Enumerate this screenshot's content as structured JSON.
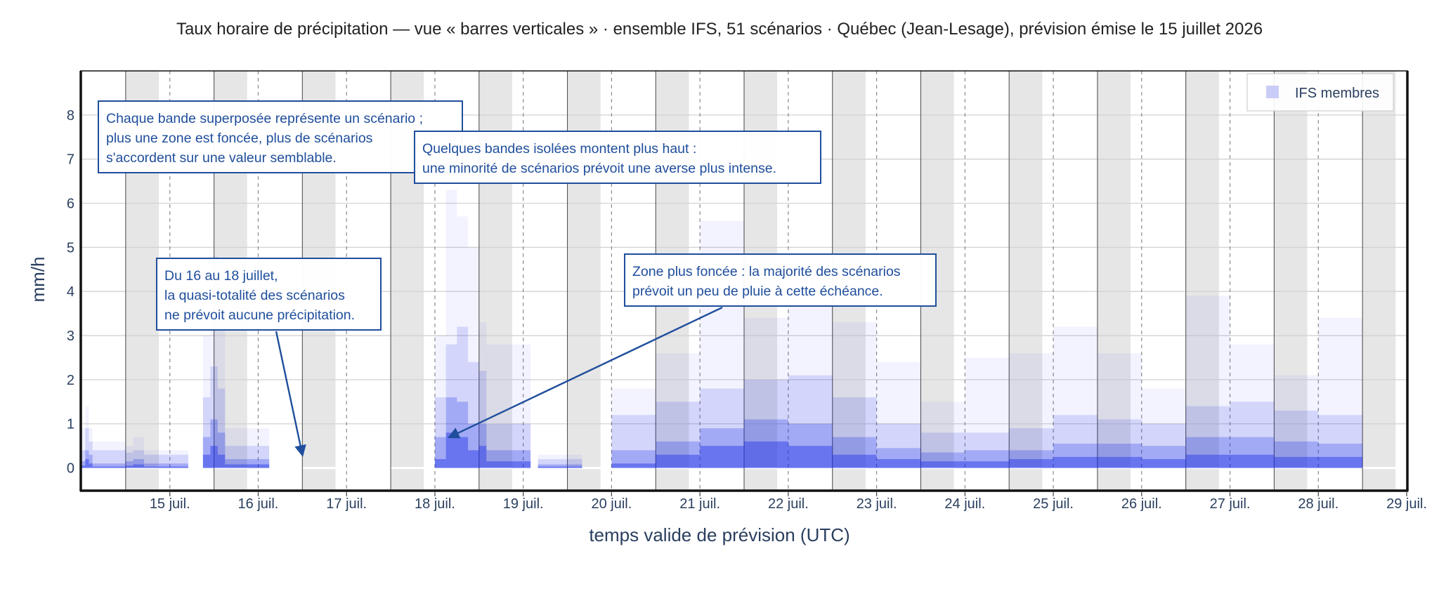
{
  "chart_data": {
    "type": "bar",
    "title": "Taux horaire de précipitation — vue « barres verticales » · ensemble IFS, 51 scénarios · Québec (Jean-Lesage), prévision émise le 15 juillet 2026",
    "xlabel": "temps valide de prévision (UTC)",
    "ylabel": "mm/h",
    "ylim": [
      -0.5,
      9
    ],
    "y_ticks": [
      "0",
      "1",
      "2",
      "3",
      "4",
      "5",
      "6",
      "7",
      "8"
    ],
    "x_ticks": [
      "15 juil.",
      "16 juil.",
      "17 juil.",
      "18 juil.",
      "19 juil.",
      "20 juil.",
      "21 juil.",
      "22 juil.",
      "23 juil.",
      "24 juil.",
      "25 juil.",
      "26 juil.",
      "27 juil.",
      "28 juil.",
      "29 juil."
    ],
    "x_start": "2026-07-14 12:00 UTC",
    "x_end": "2026-07-29 12:00 UTC",
    "grid": true,
    "legend_position": "top-right",
    "series": [
      {
        "name": "IFS membres",
        "color": "#1a2ee6"
      }
    ],
    "night_bands_utc": "00:00–09:00",
    "envelope": [
      {
        "t": "07-14 12:00",
        "p95": 0.4,
        "p75": 0.15,
        "p50": 0.05,
        "max": 0.9
      },
      {
        "t": "07-14 13:00",
        "p95": 0.9,
        "p75": 0.4,
        "p50": 0.2,
        "max": 1.4
      },
      {
        "t": "07-14 14:00",
        "p95": 0.6,
        "p75": 0.3,
        "p50": 0.1,
        "max": 0.9
      },
      {
        "t": "07-14 15:00",
        "p95": 0.4,
        "p75": 0.1,
        "p50": 0.03,
        "max": 0.6
      },
      {
        "t": "07-15 00:00",
        "p95": 0.35,
        "p75": 0.15,
        "p50": 0.05,
        "max": 0.5
      },
      {
        "t": "07-15 02:00",
        "p95": 0.4,
        "p75": 0.2,
        "p50": 0.08,
        "max": 0.7
      },
      {
        "t": "07-15 05:00",
        "p95": 0.3,
        "p75": 0.1,
        "p50": 0.03,
        "max": 0.4
      },
      {
        "t": "07-15 21:00",
        "p95": 1.6,
        "p75": 0.7,
        "p50": 0.3,
        "max": 3.0
      },
      {
        "t": "07-15 23:00",
        "p95": 2.3,
        "p75": 1.1,
        "p50": 0.5,
        "max": 4.8
      },
      {
        "t": "07-16 01:00",
        "p95": 1.8,
        "p75": 0.8,
        "p50": 0.3,
        "max": 3.6
      },
      {
        "t": "07-16 03:00",
        "p95": 0.5,
        "p75": 0.2,
        "p50": 0.08,
        "max": 0.9
      },
      {
        "t": "07-18 12:00",
        "p95": 1.6,
        "p75": 0.7,
        "p50": 0.2,
        "max": 3.0
      },
      {
        "t": "07-18 15:00",
        "p95": 2.8,
        "p75": 1.6,
        "p50": 0.8,
        "max": 6.3
      },
      {
        "t": "07-18 18:00",
        "p95": 3.2,
        "p75": 1.5,
        "p50": 0.7,
        "max": 5.7
      },
      {
        "t": "07-18 21:00",
        "p95": 2.4,
        "p75": 1.0,
        "p50": 0.4,
        "max": 5.0
      },
      {
        "t": "07-19 00:00",
        "p95": 2.2,
        "p75": 1.0,
        "p50": 0.5,
        "max": 3.3
      },
      {
        "t": "07-19 02:00",
        "p95": 1.0,
        "p75": 0.4,
        "p50": 0.15,
        "max": 2.8
      },
      {
        "t": "07-19 16:00",
        "p95": 0.2,
        "p75": 0.08,
        "p50": 0.03,
        "max": 0.3
      },
      {
        "t": "07-20 12:00",
        "p95": 1.2,
        "p75": 0.4,
        "p50": 0.1,
        "max": 1.8
      },
      {
        "t": "07-21 00:00",
        "p95": 1.5,
        "p75": 0.6,
        "p50": 0.3,
        "max": 2.6
      },
      {
        "t": "07-21 12:00",
        "p95": 1.8,
        "p75": 0.9,
        "p50": 0.5,
        "max": 5.6
      },
      {
        "t": "07-22 00:00",
        "p95": 2.0,
        "p75": 1.1,
        "p50": 0.6,
        "max": 3.4
      },
      {
        "t": "07-22 12:00",
        "p95": 2.1,
        "p75": 1.0,
        "p50": 0.5,
        "max": 4.0
      },
      {
        "t": "07-23 00:00",
        "p95": 1.6,
        "p75": 0.7,
        "p50": 0.3,
        "max": 3.3
      },
      {
        "t": "07-23 12:00",
        "p95": 1.0,
        "p75": 0.45,
        "p50": 0.2,
        "max": 2.4
      },
      {
        "t": "07-24 00:00",
        "p95": 0.8,
        "p75": 0.35,
        "p50": 0.15,
        "max": 1.5
      },
      {
        "t": "07-24 12:00",
        "p95": 0.8,
        "p75": 0.4,
        "p50": 0.15,
        "max": 2.5
      },
      {
        "t": "07-25 00:00",
        "p95": 0.9,
        "p75": 0.4,
        "p50": 0.2,
        "max": 2.6
      },
      {
        "t": "07-25 12:00",
        "p95": 1.2,
        "p75": 0.55,
        "p50": 0.25,
        "max": 3.2
      },
      {
        "t": "07-26 00:00",
        "p95": 1.1,
        "p75": 0.55,
        "p50": 0.25,
        "max": 2.6
      },
      {
        "t": "07-26 12:00",
        "p95": 1.0,
        "p75": 0.5,
        "p50": 0.2,
        "max": 1.8
      },
      {
        "t": "07-27 00:00",
        "p95": 1.4,
        "p75": 0.7,
        "p50": 0.3,
        "max": 3.9
      },
      {
        "t": "07-27 12:00",
        "p95": 1.5,
        "p75": 0.7,
        "p50": 0.3,
        "max": 2.8
      },
      {
        "t": "07-28 00:00",
        "p95": 1.3,
        "p75": 0.6,
        "p50": 0.25,
        "max": 2.1
      },
      {
        "t": "07-28 12:00",
        "p95": 1.2,
        "p75": 0.55,
        "p50": 0.25,
        "max": 3.4
      }
    ],
    "annotations": [
      {
        "lines": [
          "Chaque bande superposée représente un scénario ;",
          "plus une zone est foncée, plus de scénarios",
          "s'accordent sur une valeur semblable."
        ]
      },
      {
        "lines": [
          "Quelques bandes isolées montent plus haut :",
          "une minorité de scénarios prévoit une averse plus intense."
        ]
      },
      {
        "lines": [
          "Du 16 au 18 juillet,",
          "la quasi-totalité des scénarios",
          "ne prévoit aucune précipitation."
        ],
        "arrow_to": {
          "t": "07-17 00:00",
          "y": 0.3
        }
      },
      {
        "lines": [
          "Zone plus foncée : la majorité des scénarios",
          "prévoit un peu de pluie à cette échéance."
        ],
        "arrow_to": {
          "t": "07-18 16:00",
          "y": 0.7
        }
      }
    ]
  }
}
